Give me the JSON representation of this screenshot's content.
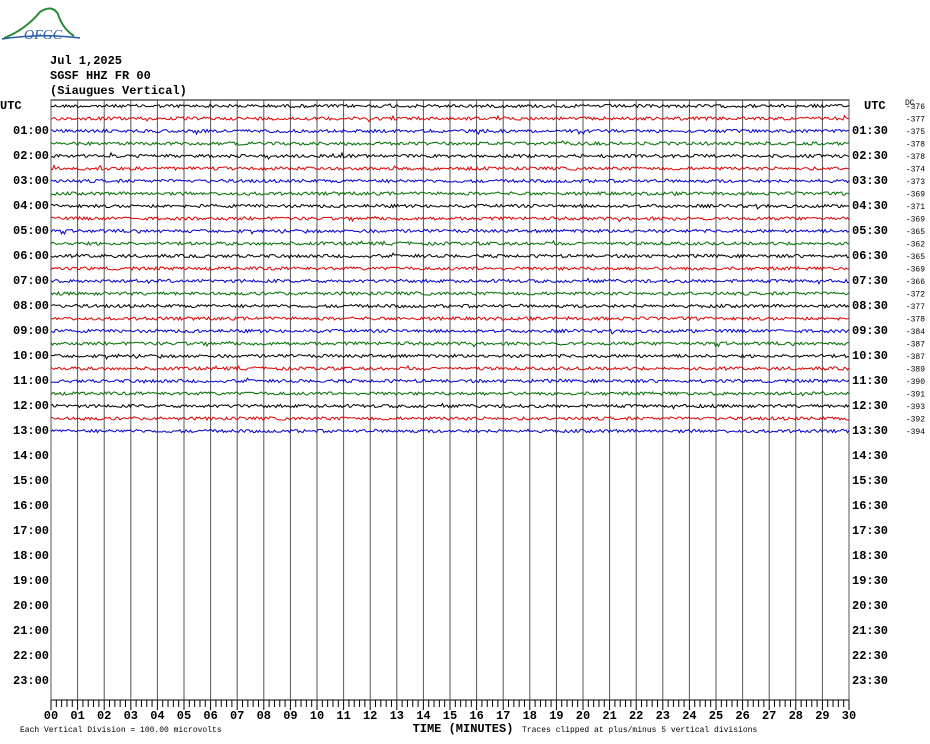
{
  "logo_text": "OFGC",
  "chart_data": {
    "type": "helicorder",
    "title_lines": [
      "Jul 1,2025",
      "SGSF HHZ FR 00",
      "(Siaugues Vertical)"
    ],
    "left_labels": [
      "UTC",
      "01:00",
      "02:00",
      "03:00",
      "04:00",
      "05:00",
      "06:00",
      "07:00",
      "08:00",
      "09:00",
      "10:00",
      "11:00",
      "12:00",
      "13:00",
      "14:00",
      "15:00",
      "16:00",
      "17:00",
      "18:00",
      "19:00",
      "20:00",
      "21:00",
      "22:00",
      "23:00"
    ],
    "right_labels": [
      "UTC",
      "01:30",
      "02:30",
      "03:30",
      "04:30",
      "05:30",
      "06:30",
      "07:30",
      "08:30",
      "09:30",
      "10:30",
      "11:30",
      "12:30",
      "13:30",
      "14:30",
      "15:30",
      "16:30",
      "17:30",
      "18:30",
      "19:30",
      "20:30",
      "21:30",
      "22:30",
      "23:30"
    ],
    "dc_title": "DC",
    "dc_offsets": [
      -376,
      -377,
      -375,
      -378,
      -378,
      -374,
      -373,
      -369,
      -371,
      -369,
      -365,
      -362,
      -365,
      -369,
      -366,
      -372,
      -377,
      -378,
      -384,
      -387,
      -387,
      -389,
      -390,
      -391,
      -393,
      -392,
      -394
    ],
    "trace_colors": [
      "#000000",
      "#e00000",
      "#0000d0",
      "#007000"
    ],
    "xlabel": "TIME (MINUTES)",
    "xlim": [
      0,
      30
    ],
    "xticks": [
      {
        "value": 0,
        "label": "00"
      },
      {
        "value": 1,
        "label": "01"
      },
      {
        "value": 2,
        "label": "02"
      },
      {
        "value": 3,
        "label": "03"
      },
      {
        "value": 4,
        "label": "04"
      },
      {
        "value": 5,
        "label": "05"
      },
      {
        "value": 6,
        "label": "06"
      },
      {
        "value": 7,
        "label": "07"
      },
      {
        "value": 8,
        "label": "08"
      },
      {
        "value": 9,
        "label": "09"
      },
      10,
      11,
      12,
      13,
      14,
      15,
      16,
      17,
      18,
      19,
      20,
      21,
      22,
      23,
      24,
      25,
      26,
      27,
      28,
      29,
      30
    ],
    "grid": true,
    "notes": [
      "Each Vertical Division =  100.00 microvolts",
      "Traces clipped at plus/minus 5 vertical divisions"
    ]
  }
}
